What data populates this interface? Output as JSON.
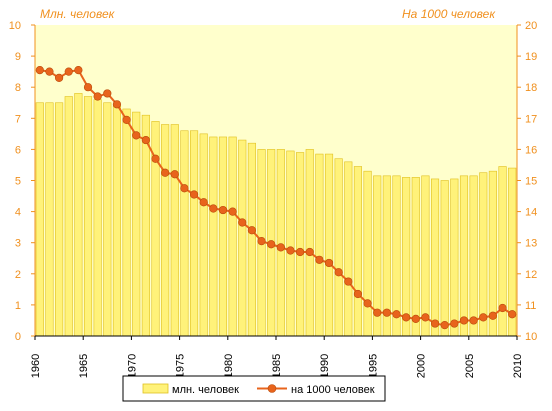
{
  "chart_data": {
    "type": "bar-line",
    "title": "",
    "x": [
      1960,
      1961,
      1962,
      1963,
      1964,
      1965,
      1966,
      1967,
      1968,
      1969,
      1970,
      1971,
      1972,
      1973,
      1974,
      1975,
      1976,
      1977,
      1978,
      1979,
      1980,
      1981,
      1982,
      1983,
      1984,
      1985,
      1986,
      1987,
      1988,
      1989,
      1990,
      1991,
      1992,
      1993,
      1994,
      1995,
      1996,
      1997,
      1998,
      1999,
      2000,
      2001,
      2002,
      2003,
      2004,
      2005,
      2006,
      2007,
      2008,
      2009
    ],
    "x_ticks": [
      "1960",
      "1965",
      "1970",
      "1975",
      "1980",
      "1985",
      "1990",
      "1995",
      "2000",
      "2005",
      "2010"
    ],
    "y_left": {
      "label": "Млн. человек",
      "range": [
        0,
        10
      ],
      "ticks": [
        "0",
        "1",
        "2",
        "3",
        "4",
        "5",
        "6",
        "7",
        "8",
        "9",
        "10"
      ]
    },
    "y_right": {
      "label": "На 1000 человек",
      "range": [
        10,
        20
      ],
      "ticks": [
        "10",
        "11",
        "12",
        "13",
        "14",
        "15",
        "16",
        "17",
        "18",
        "19",
        "20"
      ]
    },
    "series": [
      {
        "name": "млн. человек",
        "kind": "bar",
        "axis": "left",
        "color": "#fff27a",
        "border": "#e0c020",
        "values": [
          7.5,
          7.5,
          7.5,
          7.7,
          7.8,
          7.7,
          7.6,
          7.5,
          7.4,
          7.3,
          7.2,
          7.1,
          6.9,
          6.8,
          6.8,
          6.6,
          6.6,
          6.5,
          6.4,
          6.4,
          6.4,
          6.3,
          6.2,
          6.0,
          6.0,
          6.0,
          5.95,
          5.9,
          6.0,
          5.85,
          5.85,
          5.7,
          5.6,
          5.45,
          5.3,
          5.15,
          5.15,
          5.15,
          5.1,
          5.1,
          5.15,
          5.05,
          5.0,
          5.05,
          5.15,
          5.15,
          5.25,
          5.3,
          5.45,
          5.4
        ]
      },
      {
        "name": "на 1000 человек",
        "kind": "line",
        "axis": "right",
        "color": "#e8641c",
        "values": [
          18.55,
          18.5,
          18.3,
          18.5,
          18.55,
          18.0,
          17.7,
          17.8,
          17.45,
          16.95,
          16.45,
          16.3,
          15.7,
          15.25,
          15.2,
          14.75,
          14.55,
          14.3,
          14.1,
          14.05,
          14.0,
          13.65,
          13.4,
          13.05,
          12.95,
          12.85,
          12.75,
          12.7,
          12.7,
          12.45,
          12.35,
          12.05,
          11.75,
          11.35,
          11.05,
          10.75,
          10.75,
          10.7,
          10.6,
          10.55,
          10.6,
          10.4,
          10.35,
          10.4,
          10.5,
          10.5,
          10.6,
          10.65,
          10.9,
          10.7
        ]
      }
    ],
    "grid": false,
    "plot_background": "#ffffcc",
    "axis_color": "#f0901e",
    "legend": {
      "position": "bottom",
      "entries": [
        "млн. человек",
        "на 1000 человек"
      ]
    }
  }
}
